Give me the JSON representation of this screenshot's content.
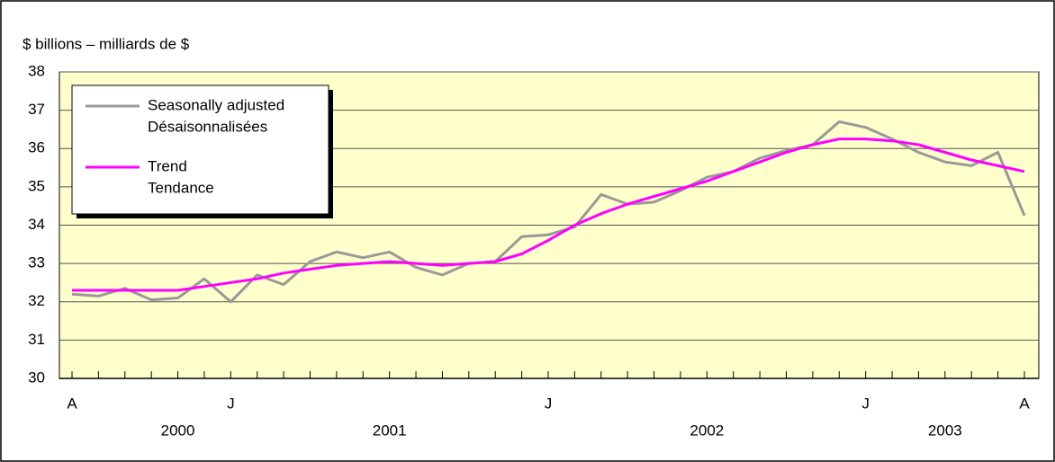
{
  "chart_data": {
    "type": "line",
    "y_axis_label": "$ billions – milliards de $",
    "categories": [
      "A",
      null,
      null,
      null,
      null,
      null,
      "J",
      null,
      null,
      null,
      null,
      null,
      null,
      null,
      null,
      null,
      null,
      null,
      "J",
      null,
      null,
      null,
      null,
      null,
      null,
      null,
      null,
      null,
      null,
      null,
      "J",
      null,
      null,
      null,
      null,
      null,
      "A"
    ],
    "year_categories": [
      null,
      null,
      null,
      null,
      "2000",
      null,
      null,
      null,
      null,
      null,
      null,
      null,
      "2001",
      null,
      null,
      null,
      null,
      null,
      null,
      null,
      null,
      null,
      null,
      null,
      "2002",
      null,
      null,
      null,
      null,
      null,
      null,
      null,
      null,
      "2003",
      null,
      null,
      null
    ],
    "series": [
      {
        "name": [
          "Seasonally adjusted",
          "Désaisonnalisées"
        ],
        "color": "#999999",
        "values": [
          32.2,
          32.15,
          32.35,
          32.05,
          32.1,
          32.6,
          32.0,
          32.7,
          32.45,
          33.05,
          33.3,
          33.15,
          33.3,
          32.9,
          32.7,
          33.0,
          33.05,
          33.7,
          33.75,
          33.95,
          34.8,
          34.55,
          34.6,
          34.9,
          35.25,
          35.4,
          35.75,
          35.95,
          36.1,
          36.7,
          36.55,
          36.25,
          35.9,
          35.65,
          35.55,
          35.9,
          34.25
        ]
      },
      {
        "name": [
          "Trend",
          "Tendance"
        ],
        "color": "#ff00ff",
        "values": [
          32.3,
          32.3,
          32.3,
          32.3,
          32.3,
          32.4,
          32.5,
          32.6,
          32.75,
          32.85,
          32.95,
          33.0,
          33.05,
          33.0,
          32.95,
          33.0,
          33.05,
          33.25,
          33.6,
          34.0,
          34.3,
          34.55,
          34.75,
          34.95,
          35.15,
          35.4,
          35.65,
          35.9,
          36.1,
          36.25,
          36.25,
          36.2,
          36.1,
          35.9,
          35.7,
          35.55,
          35.4
        ]
      }
    ],
    "ylim": [
      30,
      38
    ],
    "yticks": [
      30,
      31,
      32,
      33,
      34,
      35,
      36,
      37,
      38
    ],
    "grid": true,
    "plot_background": "#ffffcc",
    "legend": "upper left"
  }
}
